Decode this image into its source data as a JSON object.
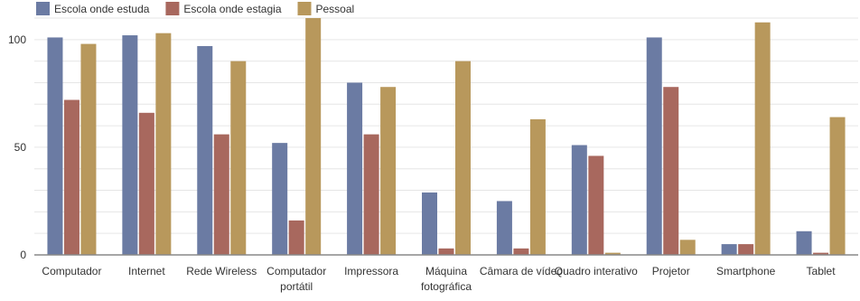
{
  "chart_data": {
    "type": "bar",
    "title": "",
    "xlabel": "",
    "ylabel": "",
    "ylim": [
      0,
      110
    ],
    "yticks": [
      0,
      50,
      100
    ],
    "grid": true,
    "legend_position": "top-left",
    "categories": [
      [
        "Computador"
      ],
      [
        "Internet"
      ],
      [
        "Rede Wireless"
      ],
      [
        "Computador",
        "portátil"
      ],
      [
        "Impressora"
      ],
      [
        "Máquina",
        "fotográfica"
      ],
      [
        "Câmara de vídeo"
      ],
      [
        "Quadro interativo"
      ],
      [
        "Projetor"
      ],
      [
        "Smartphone"
      ],
      [
        "Tablet"
      ]
    ],
    "series": [
      {
        "name": "Escola onde estuda",
        "color": "#6b7ba3",
        "values": [
          101,
          102,
          97,
          52,
          80,
          29,
          25,
          51,
          101,
          5,
          11
        ]
      },
      {
        "name": "Escola onde estagia",
        "color": "#a8685e",
        "values": [
          72,
          66,
          56,
          16,
          56,
          3,
          3,
          46,
          78,
          5,
          1
        ]
      },
      {
        "name": "Pessoal",
        "color": "#b8985c",
        "values": [
          98,
          103,
          90,
          110,
          78,
          90,
          63,
          1,
          7,
          108,
          64
        ]
      }
    ]
  }
}
